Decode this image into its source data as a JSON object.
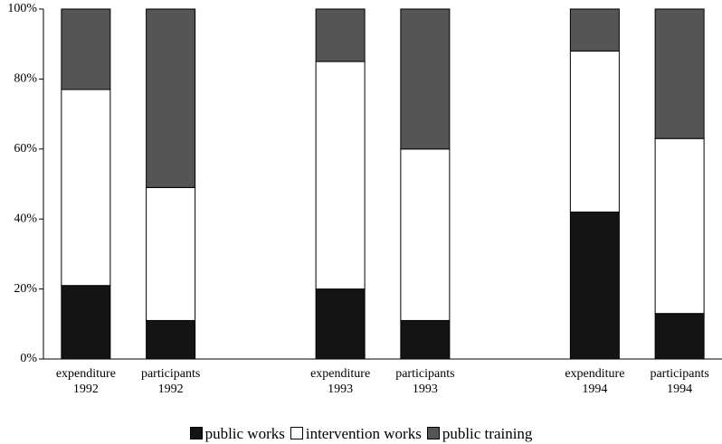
{
  "chart_data": {
    "type": "stacked_bar",
    "categories": [
      "expenditure 1992",
      "participants 1992",
      null,
      "expenditure 1993",
      "participants 1993",
      null,
      "expenditure 1994",
      "participants 1994"
    ],
    "series": [
      {
        "name": "public works",
        "color": "#141414",
        "values": [
          21,
          11,
          null,
          20,
          11,
          null,
          42,
          13
        ]
      },
      {
        "name": "intervention works",
        "color": "#ffffff",
        "values": [
          56,
          38,
          null,
          65,
          49,
          null,
          46,
          50
        ]
      },
      {
        "name": "public training",
        "color": "#555555",
        "values": [
          23,
          51,
          null,
          15,
          40,
          null,
          12,
          37
        ]
      }
    ],
    "ylim": [
      0,
      100
    ],
    "yticks": [
      {
        "value": 0,
        "label": "0%"
      },
      {
        "value": 20,
        "label": "20%"
      },
      {
        "value": 40,
        "label": "40%"
      },
      {
        "value": 60,
        "label": "60%"
      },
      {
        "value": 80,
        "label": "80%"
      },
      {
        "value": 100,
        "label": "100%"
      }
    ]
  }
}
